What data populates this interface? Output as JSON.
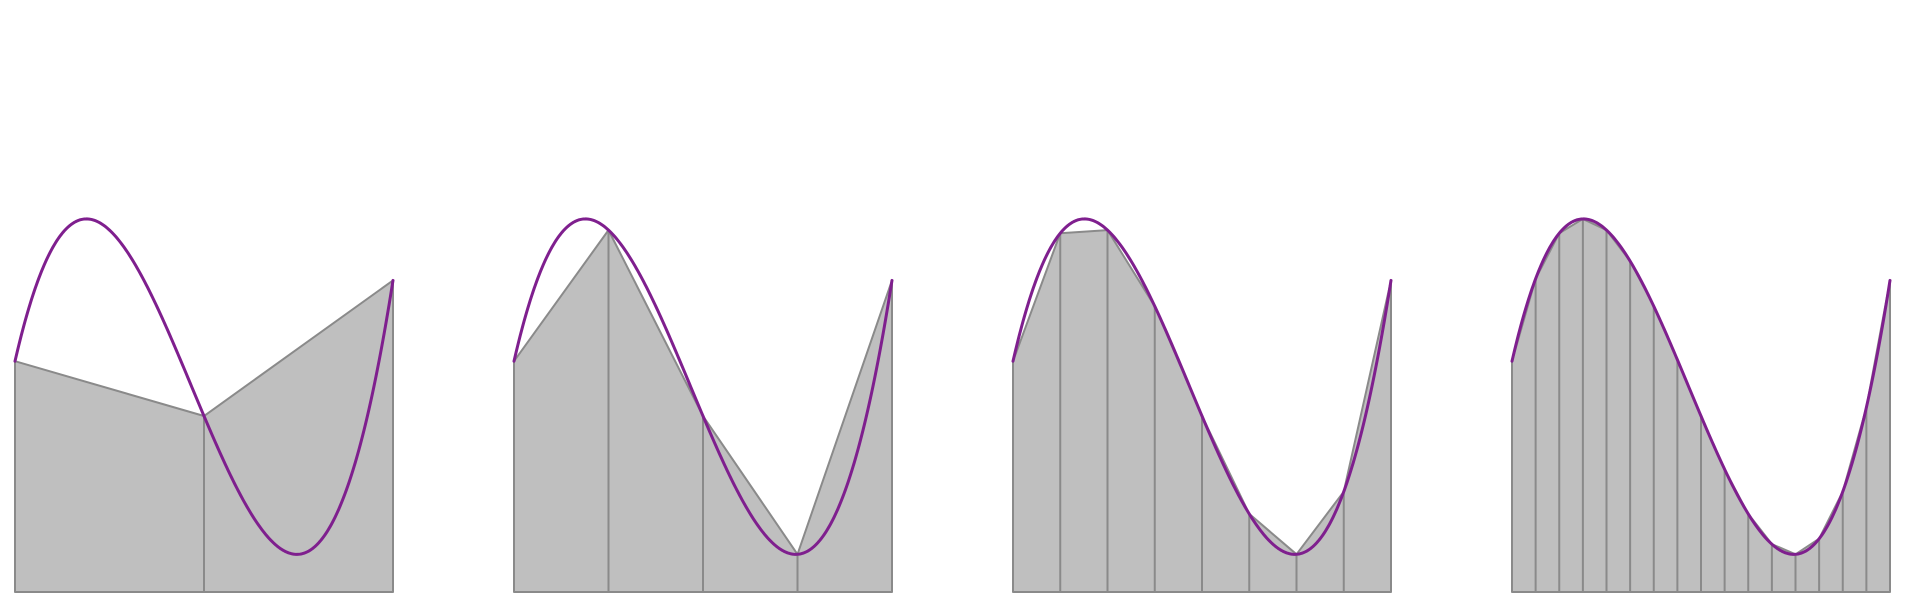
{
  "figure": {
    "description_kind": "trapezoidal rule approximations of a curve",
    "panels": [
      {
        "id": "trapezoids-2",
        "subintervals": 2
      },
      {
        "id": "trapezoids-4",
        "subintervals": 4
      },
      {
        "id": "trapezoids-8",
        "subintervals": 8
      },
      {
        "id": "trapezoids-16",
        "subintervals": 16
      }
    ],
    "function": {
      "kind": "cubic",
      "coefficients": {
        "a": 6.74,
        "b": -9.45,
        "c": 2.85,
        "d": 0.4
      },
      "domain": [
        0,
        1
      ]
    }
  },
  "colors": {
    "fill": "#bfbfbf",
    "edge": "#8a8a8a",
    "curve": "#7f1f8e",
    "background": "#ffffff"
  }
}
